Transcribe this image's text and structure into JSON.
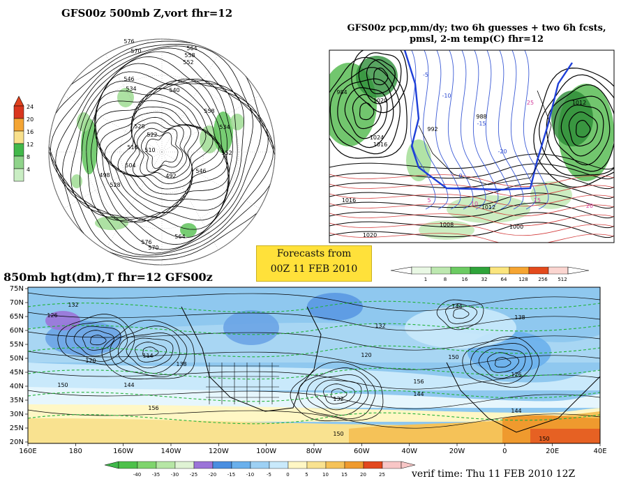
{
  "panels": {
    "z500": {
      "title": "GFS00z   500mb Z,vort     fhr=12",
      "colorbar": {
        "labels": [
          "24",
          "20",
          "16",
          "12",
          "8",
          "4"
        ],
        "colors": [
          "#d9361e",
          "#f4a534",
          "#f8e08c",
          "#42b84a",
          "#8fd38a",
          "#c9edc3"
        ]
      },
      "contours": [
        "576",
        "570",
        "564",
        "558",
        "552",
        "546",
        "540",
        "534",
        "528",
        "522",
        "516",
        "510",
        "504",
        "498",
        "492"
      ]
    },
    "precip": {
      "title_line1": "GFS00z pcp,mm/dy; two 6h guesses + two 6h fcsts,",
      "title_line2": "pmsl, 2-m temp(C)  fhr=12",
      "colorbar": {
        "labels": [
          "1",
          "8",
          "16",
          "32",
          "64",
          "128",
          "256",
          "512"
        ],
        "colors": [
          "#e9f8e4",
          "#bde8b0",
          "#6ccb62",
          "#2fa43a",
          "#fbe57e",
          "#f6a532",
          "#e44a1c",
          "#fbd5d0"
        ]
      },
      "isobars": [
        "1020",
        "1016",
        "1012",
        "1008",
        "1000",
        "992",
        "988",
        "984",
        "1024"
      ],
      "temps": [
        "-5",
        "-10",
        "-15",
        "-20",
        "0",
        "5",
        "10",
        "15",
        "20",
        "25"
      ]
    },
    "h850": {
      "title": "850mb hgt(dm),T    fhr=12  GFS00z",
      "lat_labels": [
        "75N",
        "70N",
        "65N",
        "60N",
        "55N",
        "50N",
        "45N",
        "40N",
        "35N",
        "30N",
        "25N",
        "20N"
      ],
      "lon_labels": [
        "160E",
        "180",
        "160W",
        "140W",
        "120W",
        "100W",
        "80W",
        "60W",
        "40W",
        "20W",
        "0",
        "20E",
        "40E"
      ],
      "contours": [
        "132",
        "126",
        "120",
        "114",
        "138",
        "144",
        "150",
        "156",
        "132"
      ],
      "colorbar": {
        "labels": [
          "-40",
          "-35",
          "-30",
          "-25",
          "-20",
          "-15",
          "-10",
          "-5",
          "0",
          "5",
          "10",
          "15",
          "20",
          "25"
        ],
        "colors": [
          "#4dc04a",
          "#7fd46d",
          "#b6e6a5",
          "#dff3d4",
          "#9b74d8",
          "#4a8ee0",
          "#6ab0ec",
          "#9dd0f4",
          "#c9e9fb",
          "#fff7c5",
          "#f9e290",
          "#f5c258",
          "#ef9a2e",
          "#e2481f",
          "#f8c6c6"
        ]
      }
    }
  },
  "forecast_box": {
    "line1": "Forecasts from",
    "line2": "00Z 11 FEB 2010"
  },
  "verif": "verif time: Thu 11 FEB 2010 12Z"
}
